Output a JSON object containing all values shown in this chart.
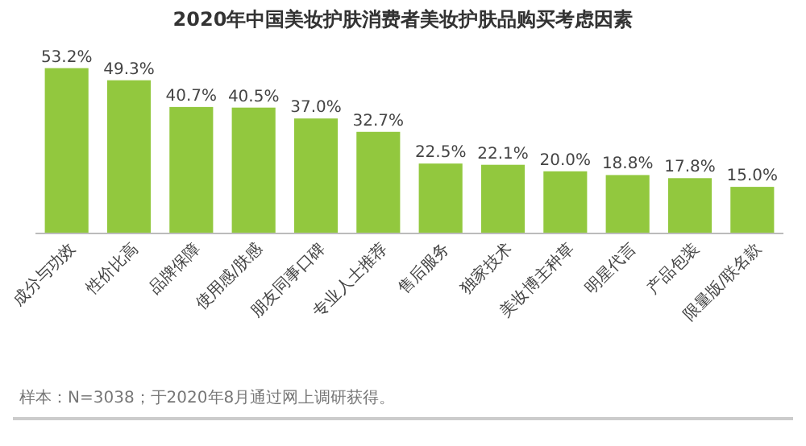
{
  "chart_data": {
    "type": "bar",
    "title": "2020年中国美妆护肤消费者美妆护肤品购买考虑因素",
    "categories": [
      "成分与功效",
      "性价比高",
      "品牌保障",
      "使用感/肤感",
      "朋友同事口碑",
      "专业人士推荐",
      "售后服务",
      "独家技术",
      "美妆博主种草",
      "明星代言",
      "产品包装",
      "限量版/联名款"
    ],
    "values": [
      53.2,
      49.3,
      40.7,
      40.5,
      37.0,
      32.7,
      22.5,
      22.1,
      20.0,
      18.8,
      17.8,
      15.0
    ],
    "value_labels": [
      "53.2%",
      "49.3%",
      "40.7%",
      "40.5%",
      "37.0%",
      "32.7%",
      "22.5%",
      "22.1%",
      "20.0%",
      "18.8%",
      "17.8%",
      "15.0%"
    ],
    "color": "#92c83e",
    "annotations": [
      "样本：N=3038；于2020年8月通过网上调研获得。"
    ]
  }
}
